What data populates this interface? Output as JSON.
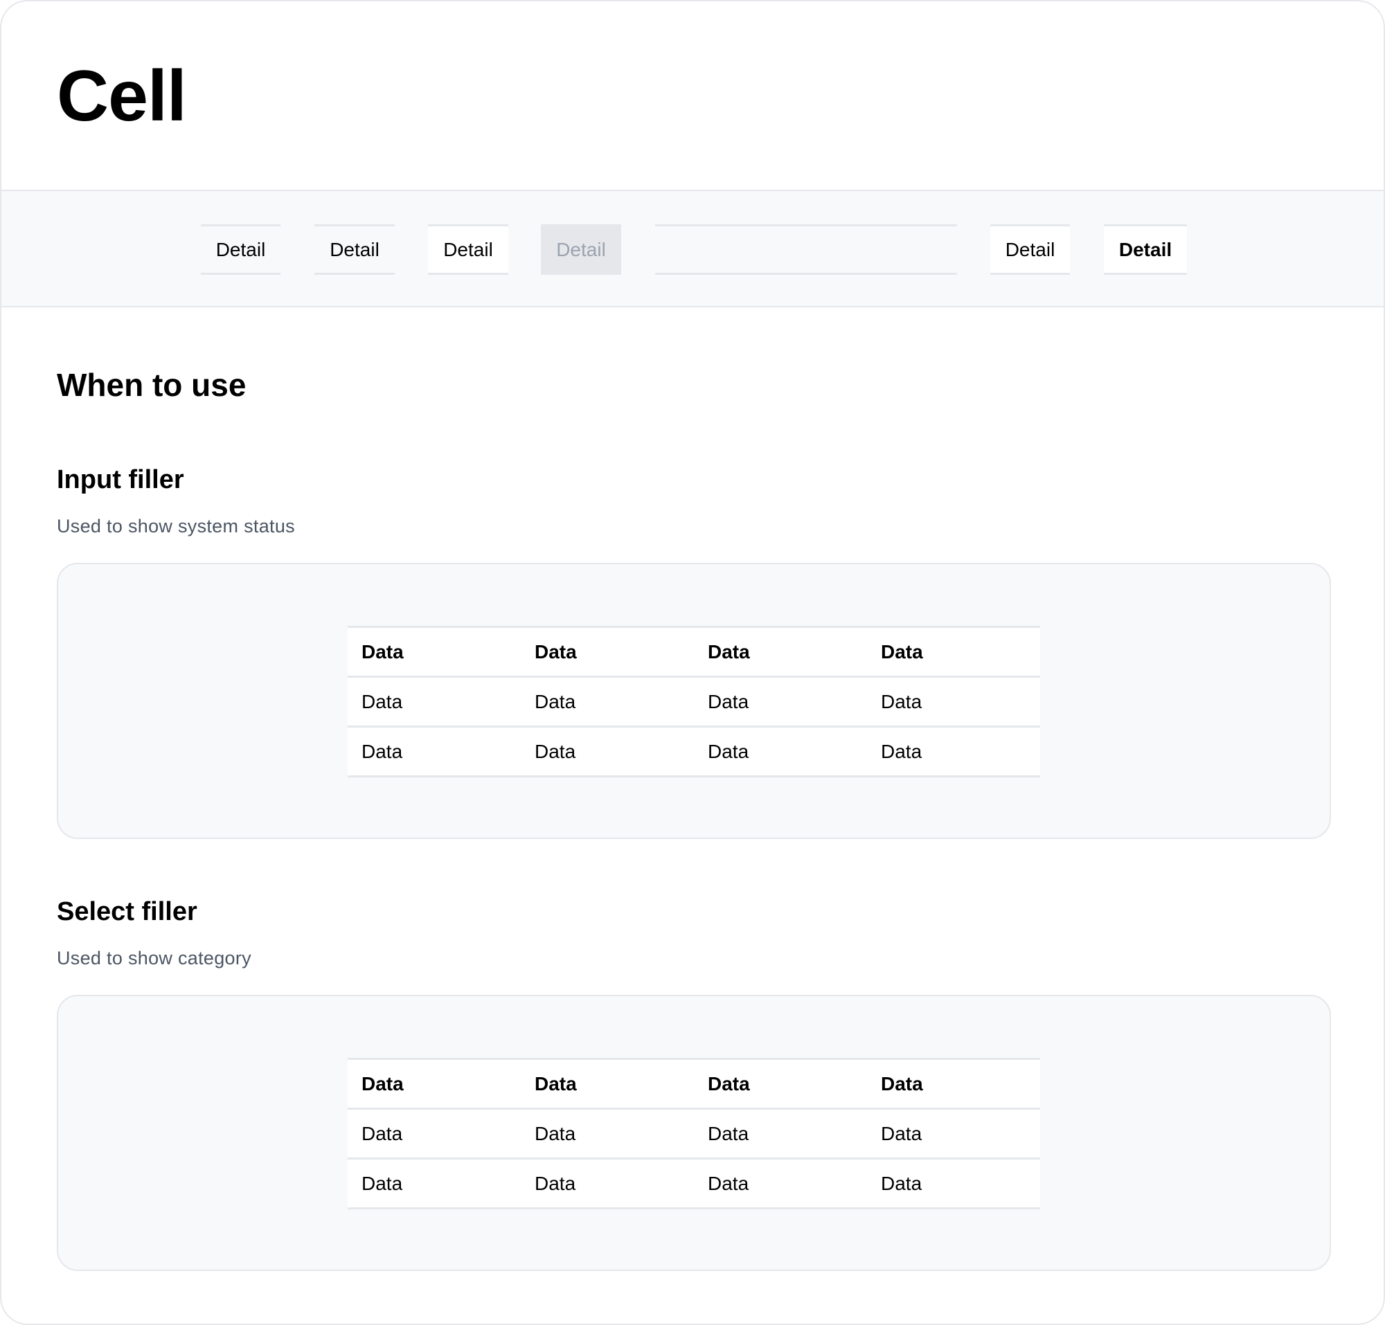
{
  "title": "Cell",
  "detail_row": [
    {
      "label": "Detail",
      "state": "default"
    },
    {
      "label": "Detail",
      "state": "default"
    },
    {
      "label": "Detail",
      "state": "white"
    },
    {
      "label": "Detail",
      "state": "disabled"
    },
    {
      "label": "",
      "state": "empty"
    },
    {
      "label": "Detail",
      "state": "white"
    },
    {
      "label": "Detail",
      "state": "bold"
    }
  ],
  "section_title": "When to use",
  "examples": [
    {
      "title": "Input filler",
      "description": "Used to show system status",
      "table": {
        "headers": [
          "Data",
          "Data",
          "Data",
          "Data"
        ],
        "rows": [
          [
            "Data",
            "Data",
            "Data",
            "Data"
          ],
          [
            "Data",
            "Data",
            "Data",
            "Data"
          ]
        ]
      }
    },
    {
      "title": "Select filler",
      "description": "Used to show category",
      "table": {
        "headers": [
          "Data",
          "Data",
          "Data",
          "Data"
        ],
        "rows": [
          [
            "Data",
            "Data",
            "Data",
            "Data"
          ],
          [
            "Data",
            "Data",
            "Data",
            "Data"
          ]
        ]
      }
    }
  ],
  "colors": {
    "border": "#e5e7eb",
    "band_bg": "#f8f9fa",
    "disabled_text": "#9ca3af",
    "description_text": "#4b5563"
  }
}
